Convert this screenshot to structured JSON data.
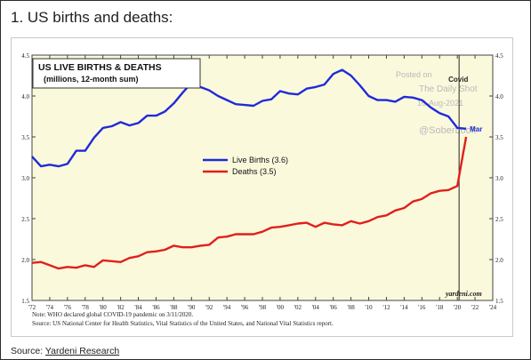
{
  "heading": "1. US births and deaths:",
  "source": {
    "prefix": "Source: ",
    "link_text": "Yardeni Research"
  },
  "colors": {
    "plot_bg": "#fbf9dc",
    "births": "#1f2bd8",
    "deaths": "#e0201b",
    "covid_line": "#222222"
  },
  "chart_data": {
    "type": "line",
    "title": "US LIVE BIRTHS & DEATHS",
    "subtitle": "(millions, 12-month sum)",
    "xlabel": "",
    "ylabel": "",
    "xlim": [
      1972,
      2024
    ],
    "ylim": [
      1.5,
      4.5
    ],
    "x_ticks": [
      "'72",
      "'74",
      "'76",
      "'78",
      "'80",
      "'82",
      "'84",
      "'86",
      "'88",
      "'90",
      "'92",
      "'94",
      "'96",
      "'98",
      "'00",
      "'02",
      "'04",
      "'06",
      "'08",
      "'10",
      "'12",
      "'14",
      "'16",
      "'18",
      "'20",
      "'22",
      "'24"
    ],
    "y_ticks": [
      "1.5",
      "2.0",
      "2.5",
      "3.0",
      "3.5",
      "4.0",
      "4.5"
    ],
    "grid": false,
    "legend_position": "center-left",
    "series": [
      {
        "name": "Live Births (3.6)",
        "x": [
          1972,
          1973,
          1974,
          1975,
          1976,
          1977,
          1978,
          1979,
          1980,
          1981,
          1982,
          1983,
          1984,
          1985,
          1986,
          1987,
          1988,
          1989,
          1990,
          1991,
          1992,
          1993,
          1994,
          1995,
          1996,
          1997,
          1998,
          1999,
          2000,
          2001,
          2002,
          2003,
          2004,
          2005,
          2006,
          2007,
          2008,
          2009,
          2010,
          2011,
          2012,
          2013,
          2014,
          2015,
          2016,
          2017,
          2018,
          2019,
          2020,
          2021
        ],
        "values": [
          3.26,
          3.14,
          3.16,
          3.14,
          3.17,
          3.33,
          3.33,
          3.49,
          3.61,
          3.63,
          3.68,
          3.64,
          3.67,
          3.76,
          3.76,
          3.81,
          3.91,
          4.04,
          4.16,
          4.11,
          4.07,
          4.0,
          3.95,
          3.9,
          3.89,
          3.88,
          3.94,
          3.96,
          4.06,
          4.03,
          4.02,
          4.09,
          4.11,
          4.14,
          4.27,
          4.32,
          4.25,
          4.13,
          4.0,
          3.95,
          3.95,
          3.93,
          3.99,
          3.98,
          3.95,
          3.86,
          3.79,
          3.75,
          3.61,
          3.6
        ]
      },
      {
        "name": "Deaths (3.5)",
        "x": [
          1972,
          1973,
          1974,
          1975,
          1976,
          1977,
          1978,
          1979,
          1980,
          1981,
          1982,
          1983,
          1984,
          1985,
          1986,
          1987,
          1988,
          1989,
          1990,
          1991,
          1992,
          1993,
          1994,
          1995,
          1996,
          1997,
          1998,
          1999,
          2000,
          2001,
          2002,
          2003,
          2004,
          2005,
          2006,
          2007,
          2008,
          2009,
          2010,
          2011,
          2012,
          2013,
          2014,
          2015,
          2016,
          2017,
          2018,
          2019,
          2020,
          2020.5,
          2021
        ],
        "values": [
          1.96,
          1.97,
          1.93,
          1.89,
          1.91,
          1.9,
          1.93,
          1.91,
          1.99,
          1.98,
          1.97,
          2.02,
          2.04,
          2.09,
          2.1,
          2.12,
          2.17,
          2.15,
          2.15,
          2.17,
          2.18,
          2.27,
          2.28,
          2.31,
          2.31,
          2.31,
          2.34,
          2.39,
          2.4,
          2.42,
          2.44,
          2.45,
          2.4,
          2.45,
          2.43,
          2.42,
          2.47,
          2.44,
          2.47,
          2.52,
          2.54,
          2.6,
          2.63,
          2.71,
          2.74,
          2.81,
          2.84,
          2.85,
          2.9,
          3.2,
          3.5
        ]
      }
    ],
    "annotations": {
      "note": "Note: WHO declared global COVID-19 pandemic on 3/11/2020.",
      "source_note": "Source: US National Center for Health Statistics, Vital Statistics of the United States, and National Vital Statistics report.",
      "covid_label": "Covid",
      "covid_x": 2020.2,
      "mar_label": "Mar",
      "watermark_lines": [
        "Posted on",
        "The Daily Shot",
        "10-Aug-2021",
        "@SoberLook"
      ],
      "credit": "yardeni.com"
    }
  }
}
